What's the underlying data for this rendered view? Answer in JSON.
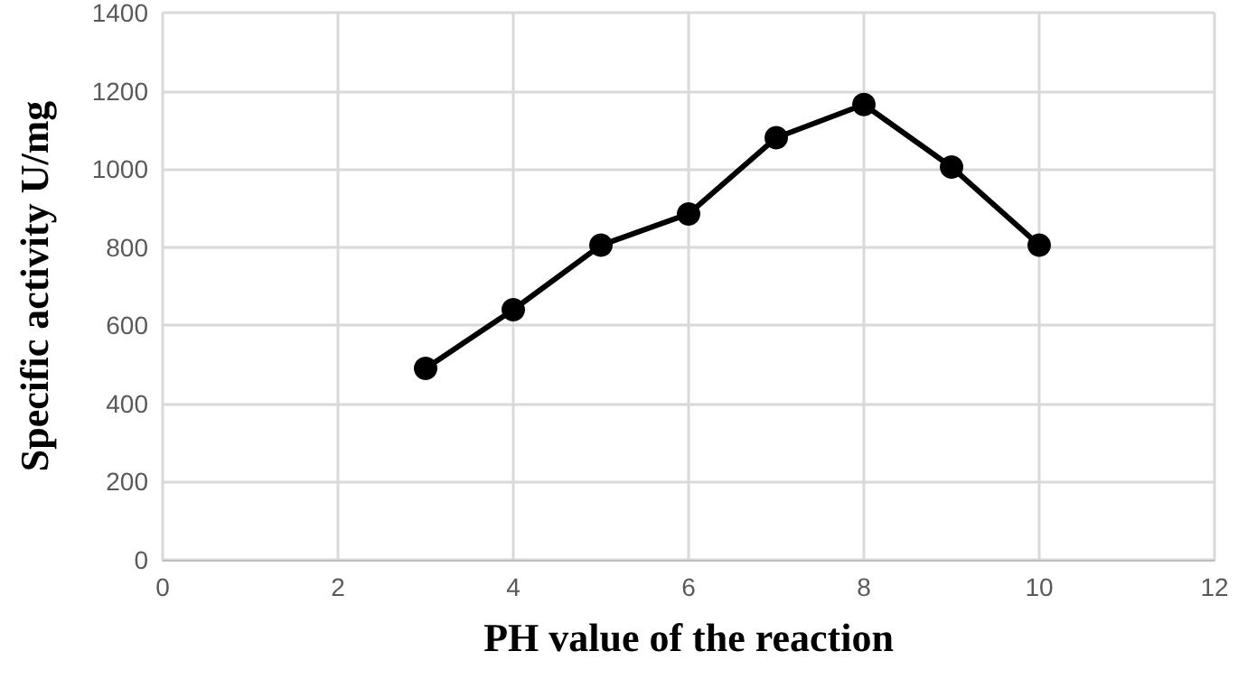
{
  "chart_data": {
    "type": "line",
    "xlabel": "PH value of the reaction",
    "ylabel": "Specific activity U/mg",
    "x": [
      3,
      4,
      5,
      6,
      7,
      8,
      9,
      10
    ],
    "series": [
      {
        "color": "#000000",
        "values": [
          490,
          640,
          805,
          885,
          1080,
          1165,
          1005,
          805
        ]
      }
    ],
    "xlim": [
      0,
      12
    ],
    "xticks": [
      0,
      2,
      4,
      6,
      8,
      10,
      12
    ],
    "ylim": [
      0,
      1400
    ],
    "yticks": [
      0,
      200,
      400,
      600,
      800,
      1000,
      1200,
      1400
    ],
    "grid": true,
    "marker": "circle",
    "line_style": "solid"
  }
}
